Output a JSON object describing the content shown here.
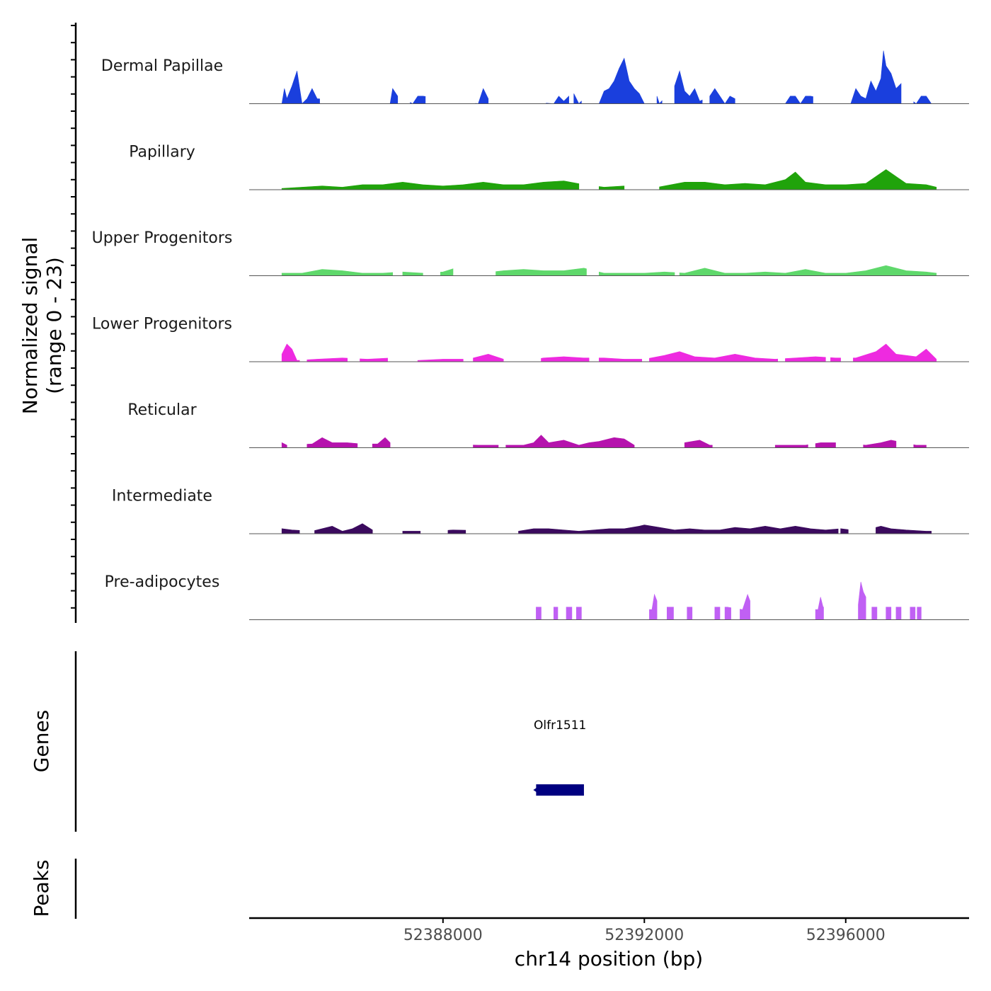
{
  "chart_data": {
    "type": "area",
    "title": "",
    "chromosome": "chr14",
    "xlabel": "chr14 position (bp)",
    "ylabel_line1": "Normalized signal",
    "ylabel_line2": "(range 0 - 23)",
    "y_range": [
      0,
      23
    ],
    "x_range": [
      52384150,
      52398450
    ],
    "x_ticks": [
      52388000,
      52392000,
      52396000
    ],
    "x_tick_labels": [
      "52388000",
      "52392000",
      "52396000"
    ],
    "tracks": [
      {
        "name": "Dermal Papillae",
        "color": "#1a3fdd",
        "x": [
          52384800,
          52384850,
          52384900,
          52385000,
          52385100,
          52385200,
          52385300,
          52385400,
          52385500,
          52386950,
          52387000,
          52387100,
          52387400,
          52387500,
          52387600,
          52388700,
          52388800,
          52388900,
          52390200,
          52390300,
          52390400,
          52390500,
          52390600,
          52390700,
          52390800,
          52391100,
          52391200,
          52391300,
          52391400,
          52391500,
          52391600,
          52391700,
          52391800,
          52391900,
          52392000,
          52392250,
          52392300,
          52392600,
          52392700,
          52392800,
          52392900,
          52393000,
          52393100,
          52393300,
          52393400,
          52393500,
          52393600,
          52393700,
          52393800,
          52394800,
          52394900,
          52395000,
          52395100,
          52395200,
          52395300,
          52396100,
          52396200,
          52396300,
          52396400,
          52396500,
          52396600,
          52396700,
          52396750,
          52396800,
          52396900,
          52397000,
          52397100,
          52397200,
          52397400,
          52397500,
          52397600,
          52397700,
          52397800
        ],
        "y": [
          0,
          6,
          2,
          7,
          13,
          0,
          2,
          6,
          2,
          0,
          6,
          3,
          0,
          3,
          3,
          0,
          6,
          2,
          0,
          3,
          1,
          3,
          4,
          0,
          2,
          0,
          5,
          6,
          9,
          14,
          18,
          9,
          6,
          4,
          0,
          3,
          0,
          7,
          13,
          5,
          3,
          6,
          1,
          3,
          6,
          3,
          0,
          3,
          2,
          0,
          3,
          3,
          0,
          3,
          3,
          0,
          6,
          3,
          2,
          9,
          5,
          10,
          21,
          15,
          12,
          6,
          8,
          3,
          0,
          3,
          3,
          0,
          3
        ],
        "segments": [
          [
            52384800,
            52385550
          ],
          [
            52386950,
            52387100
          ],
          [
            52387350,
            52387650
          ],
          [
            52388650,
            52388900
          ],
          [
            52390050,
            52390500
          ],
          [
            52390600,
            52390750
          ],
          [
            52391100,
            52392000
          ],
          [
            52392250,
            52392350
          ],
          [
            52392600,
            52393150
          ],
          [
            52393300,
            52393800
          ],
          [
            52394800,
            52395350
          ],
          [
            52396100,
            52397100
          ],
          [
            52397350,
            52397700
          ]
        ]
      },
      {
        "name": "Papillary",
        "color": "#20a30b",
        "x": [
          52384800,
          52385200,
          52385600,
          52386000,
          52386400,
          52386800,
          52387200,
          52387600,
          52388000,
          52388400,
          52388800,
          52389200,
          52389600,
          52390000,
          52390400,
          52390800,
          52391200,
          52391600,
          52392000,
          52392400,
          52392800,
          52393200,
          52393600,
          52394000,
          52394400,
          52394800,
          52395000,
          52395200,
          52395600,
          52396000,
          52396400,
          52396800,
          52397200,
          52397600,
          52397800
        ],
        "y": [
          0.5,
          1,
          1.5,
          1,
          2,
          2,
          3,
          2,
          1.5,
          2,
          3,
          2,
          2,
          3,
          3.5,
          2,
          1,
          1.5,
          0,
          1.5,
          3,
          3,
          2,
          2.5,
          2,
          4,
          7,
          3,
          2,
          2,
          2.5,
          8,
          2.5,
          2,
          1
        ],
        "segments": [
          [
            52384800,
            52390700
          ],
          [
            52391100,
            52391600
          ],
          [
            52392300,
            52397800
          ]
        ]
      },
      {
        "name": "Upper Progenitors",
        "color": "#5fd86b",
        "x": [
          52384800,
          52385200,
          52385600,
          52386000,
          52386400,
          52386800,
          52387200,
          52387600,
          52388000,
          52388400,
          52388800,
          52389200,
          52389600,
          52390000,
          52390400,
          52390800,
          52391200,
          52391600,
          52392000,
          52392400,
          52392800,
          52393200,
          52393600,
          52394000,
          52394400,
          52394800,
          52395200,
          52395600,
          52396000,
          52396400,
          52396800,
          52397200,
          52397600,
          52397800
        ],
        "y": [
          1,
          1,
          2.5,
          2,
          1,
          1,
          1.5,
          1,
          1.5,
          4,
          1,
          2,
          2.5,
          2,
          2,
          3,
          1,
          1,
          1,
          1.5,
          1,
          3,
          1,
          1,
          1.5,
          1,
          2.5,
          1,
          1,
          2,
          4,
          2,
          1.5,
          1
        ],
        "segments": [
          [
            52384800,
            52387000
          ],
          [
            52387200,
            52387600
          ],
          [
            52387950,
            52388200
          ],
          [
            52389050,
            52390850
          ],
          [
            52391100,
            52392600
          ],
          [
            52392700,
            52397800
          ]
        ]
      },
      {
        "name": "Lower Progenitors",
        "color": "#ee2ae0",
        "x": [
          52384800,
          52384900,
          52385000,
          52385100,
          52385500,
          52386000,
          52386500,
          52387000,
          52387500,
          52388000,
          52388500,
          52388900,
          52389200,
          52389600,
          52390000,
          52390400,
          52390800,
          52391200,
          52391600,
          52392000,
          52392400,
          52392700,
          52393000,
          52393400,
          52393800,
          52394200,
          52394600,
          52395000,
          52395400,
          52395800,
          52396200,
          52396600,
          52396800,
          52397000,
          52397400,
          52397600,
          52397800
        ],
        "y": [
          3,
          7,
          5,
          0.5,
          1,
          1.5,
          1,
          1.5,
          0.5,
          1,
          1,
          3,
          1,
          0,
          1.5,
          2,
          1.5,
          1.5,
          1,
          1,
          2.5,
          4,
          2,
          1.5,
          3,
          1.5,
          1,
          1.5,
          2,
          1.5,
          1.5,
          4,
          7,
          3,
          2,
          5,
          1
        ],
        "segments": [
          [
            52384800,
            52385150
          ],
          [
            52385300,
            52386100
          ],
          [
            52386350,
            52386900
          ],
          [
            52387500,
            52388400
          ],
          [
            52388600,
            52389200
          ],
          [
            52389950,
            52390900
          ],
          [
            52391100,
            52391950
          ],
          [
            52392100,
            52394650
          ],
          [
            52394800,
            52395600
          ],
          [
            52395700,
            52395900
          ],
          [
            52396150,
            52397800
          ]
        ]
      },
      {
        "name": "Reticular",
        "color": "#b513ad",
        "x": [
          52384800,
          52384900,
          52385400,
          52385600,
          52385800,
          52386100,
          52386400,
          52386700,
          52386850,
          52386950,
          52388700,
          52389000,
          52389300,
          52389600,
          52389800,
          52389950,
          52390100,
          52390400,
          52390700,
          52390900,
          52391100,
          52391400,
          52391600,
          52391800,
          52392000,
          52392800,
          52393100,
          52393300,
          52394600,
          52394900,
          52395200,
          52395500,
          52395800,
          52396400,
          52396700,
          52396900,
          52397400,
          52397600
        ],
        "y": [
          2,
          1,
          1.5,
          4,
          2,
          2,
          1.5,
          1.5,
          4,
          2,
          1,
          1,
          1,
          1,
          2,
          5,
          2,
          3,
          1,
          2,
          2.5,
          4,
          3.5,
          1,
          0.5,
          2,
          3,
          1,
          1,
          1,
          1,
          2,
          2,
          1,
          2,
          3,
          1,
          1
        ],
        "segments": [
          [
            52384800,
            52384900
          ],
          [
            52385300,
            52386300
          ],
          [
            52386600,
            52386950
          ],
          [
            52388600,
            52389100
          ],
          [
            52389250,
            52391800
          ],
          [
            52392800,
            52393350
          ],
          [
            52394600,
            52395250
          ],
          [
            52395400,
            52395800
          ],
          [
            52396350,
            52397000
          ],
          [
            52397350,
            52397600
          ]
        ]
      },
      {
        "name": "Intermediate",
        "color": "#3b0a5e",
        "x": [
          52384800,
          52385000,
          52385400,
          52385800,
          52386000,
          52386200,
          52386400,
          52386600,
          52387200,
          52387800,
          52388200,
          52389500,
          52389800,
          52390100,
          52390400,
          52390700,
          52391000,
          52391300,
          52391600,
          52391900,
          52392000,
          52392300,
          52392600,
          52392900,
          52393200,
          52393500,
          52393800,
          52394100,
          52394400,
          52394700,
          52395000,
          52395300,
          52395600,
          52395900,
          52396300,
          52396700,
          52396900,
          52397200,
          52397600
        ],
        "y": [
          2,
          1.5,
          1,
          3,
          1,
          2,
          4,
          1.5,
          1,
          1,
          1.5,
          1,
          2,
          2,
          1.5,
          1,
          1.5,
          2,
          2,
          3,
          3.5,
          2.5,
          1.5,
          2,
          1.5,
          1.5,
          2.5,
          2,
          3,
          2,
          3,
          2,
          1.5,
          2,
          1,
          3,
          2,
          1.5,
          1
        ],
        "segments": [
          [
            52384800,
            52385150
          ],
          [
            52385450,
            52386600
          ],
          [
            52387200,
            52387550
          ],
          [
            52388100,
            52388450
          ],
          [
            52389500,
            52395850
          ],
          [
            52395900,
            52396050
          ],
          [
            52396600,
            52397700
          ]
        ]
      },
      {
        "name": "Pre-adipocytes",
        "color": "#c060f4",
        "x": [
          52389850,
          52390200,
          52390500,
          52390600,
          52390750,
          52392150,
          52392200,
          52392300,
          52392500,
          52392900,
          52393450,
          52393650,
          52393950,
          52394050,
          52394150,
          52395450,
          52395500,
          52395550,
          52396250,
          52396300,
          52396350,
          52396500,
          52396800,
          52397000,
          52397300,
          52397500
        ],
        "y": [
          5,
          5,
          5,
          5,
          5,
          4,
          10,
          5,
          5,
          5,
          5,
          5,
          4,
          10,
          5,
          4,
          9,
          5,
          6,
          15,
          11,
          5,
          5,
          5,
          5,
          5
        ],
        "segments": [
          [
            52389850,
            52389950
          ],
          [
            52390200,
            52390280
          ],
          [
            52390450,
            52390560
          ],
          [
            52390650,
            52390750
          ],
          [
            52392100,
            52392250
          ],
          [
            52392450,
            52392580
          ],
          [
            52392850,
            52392950
          ],
          [
            52393400,
            52393500
          ],
          [
            52393600,
            52393720
          ],
          [
            52393900,
            52394100
          ],
          [
            52395400,
            52395560
          ],
          [
            52396250,
            52396400
          ],
          [
            52396520,
            52396620
          ],
          [
            52396800,
            52396900
          ],
          [
            52397000,
            52397100
          ],
          [
            52397280,
            52397380
          ],
          [
            52397420,
            52397500
          ]
        ]
      }
    ],
    "genes_track": {
      "title": "Genes",
      "genes": [
        {
          "name": "Olfr1511",
          "start": 52389850,
          "end": 52390800,
          "strand": "-",
          "color": "#000080"
        }
      ]
    },
    "peaks_track": {
      "title": "Peaks",
      "peaks": []
    }
  }
}
